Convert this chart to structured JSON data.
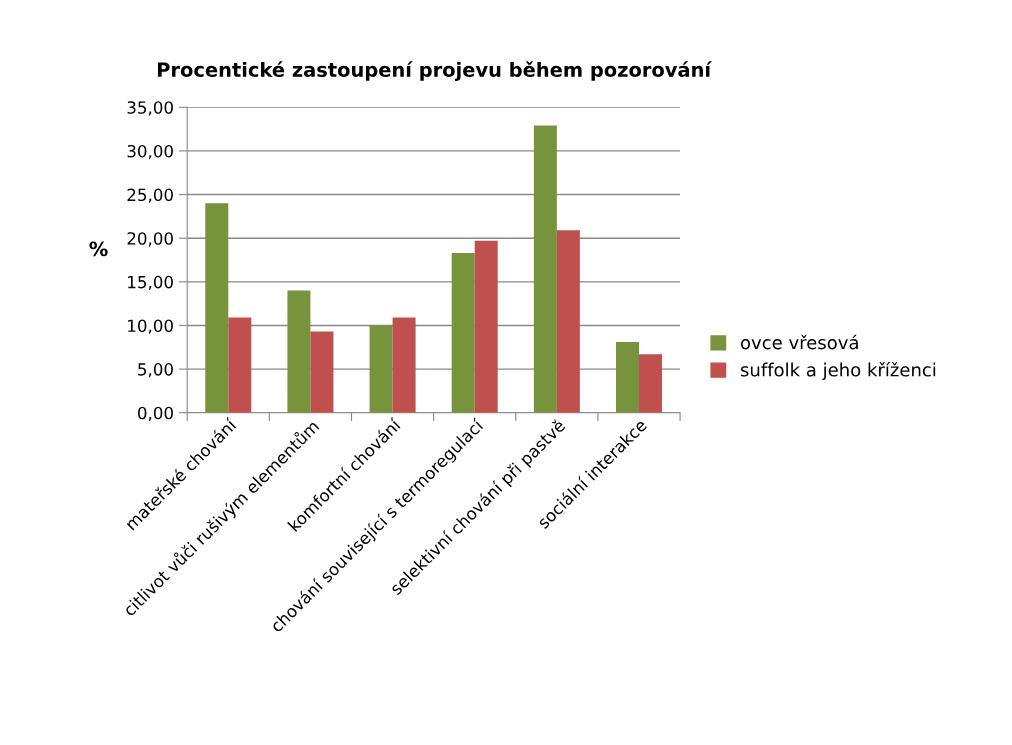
{
  "chart_data": {
    "type": "bar",
    "title": "Procentické zastoupení projevu během pozorování",
    "ylabel": "%",
    "categories": [
      "mateřské chování",
      "citlivot vůči rušivým elementům",
      "komfortní chování",
      "chování související s termoregulací",
      "selektivní chování při pastvě",
      "sociální interakce"
    ],
    "series": [
      {
        "name": "ovce vřesová",
        "color": "#77933c",
        "values": [
          24.0,
          14.0,
          10.0,
          18.3,
          32.9,
          8.1
        ]
      },
      {
        "name": "suffolk a jeho kříženci",
        "color": "#c0504d",
        "values": [
          10.9,
          9.3,
          10.9,
          19.7,
          20.9,
          6.7
        ]
      }
    ],
    "ylim": [
      0,
      35
    ],
    "yticks": [
      {
        "value": 0,
        "label": "0,00"
      },
      {
        "value": 5,
        "label": "5,00"
      },
      {
        "value": 10,
        "label": "10,00"
      },
      {
        "value": 15,
        "label": "15,00"
      },
      {
        "value": 20,
        "label": "20,00"
      },
      {
        "value": 25,
        "label": "25,00"
      },
      {
        "value": 30,
        "label": "30,00"
      },
      {
        "value": 35,
        "label": "35,00"
      }
    ],
    "grid": "y",
    "legend": "right"
  }
}
